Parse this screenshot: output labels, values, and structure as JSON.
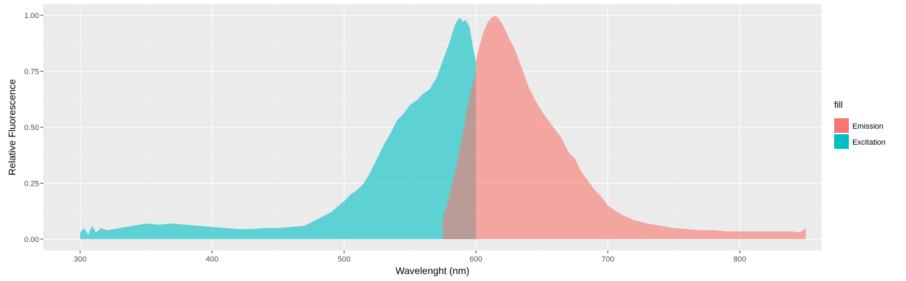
{
  "chart_data": {
    "type": "area",
    "xlabel": "Wavelenght (nm)",
    "ylabel": "Relative Fluorescence",
    "xlim": [
      272,
      862
    ],
    "ylim": [
      -0.05,
      1.05
    ],
    "x_ticks": [
      300,
      400,
      500,
      600,
      700,
      800
    ],
    "y_ticks": [
      0.0,
      0.25,
      0.5,
      0.75,
      1.0
    ],
    "x_tick_labels": [
      "300",
      "400",
      "500",
      "600",
      "700",
      "800"
    ],
    "y_tick_labels": [
      "0.00",
      "0.25",
      "0.50",
      "0.75",
      "1.00"
    ],
    "grid": true,
    "panel_background": "#ebebeb",
    "legend": {
      "title": "fill",
      "position": "right",
      "entries": [
        {
          "label": "Emission",
          "color": "#f8766d"
        },
        {
          "label": "Excitation",
          "color": "#00bfc4"
        }
      ]
    },
    "series": [
      {
        "key": "excitation",
        "color": "#00bfc4",
        "opacity": 0.6,
        "x": [
          300,
          303,
          306,
          309,
          312,
          316,
          320,
          330,
          340,
          350,
          360,
          370,
          380,
          390,
          400,
          410,
          420,
          430,
          440,
          450,
          460,
          470,
          480,
          490,
          500,
          505,
          510,
          515,
          520,
          525,
          530,
          535,
          540,
          545,
          550,
          555,
          560,
          565,
          570,
          575,
          580,
          582,
          585,
          588,
          590,
          592,
          595,
          598,
          600
        ],
        "y": [
          0.03,
          0.05,
          0.02,
          0.06,
          0.03,
          0.05,
          0.04,
          0.05,
          0.06,
          0.07,
          0.065,
          0.07,
          0.065,
          0.06,
          0.055,
          0.05,
          0.045,
          0.045,
          0.05,
          0.05,
          0.055,
          0.06,
          0.09,
          0.12,
          0.17,
          0.2,
          0.22,
          0.25,
          0.3,
          0.36,
          0.42,
          0.47,
          0.53,
          0.56,
          0.6,
          0.62,
          0.65,
          0.67,
          0.72,
          0.8,
          0.88,
          0.92,
          0.97,
          0.99,
          0.97,
          0.98,
          0.95,
          0.85,
          0.79
        ]
      },
      {
        "key": "emission",
        "color": "#f8766d",
        "opacity": 0.6,
        "x": [
          575,
          578,
          581,
          584,
          587,
          590,
          593,
          596,
          600,
          600,
          603,
          606,
          609,
          612,
          615,
          618,
          621,
          625,
          630,
          635,
          640,
          645,
          650,
          655,
          660,
          665,
          670,
          675,
          680,
          685,
          690,
          695,
          700,
          710,
          720,
          730,
          740,
          750,
          760,
          770,
          780,
          790,
          800,
          810,
          820,
          830,
          840,
          845,
          848,
          850
        ],
        "y": [
          0.1,
          0.15,
          0.22,
          0.3,
          0.38,
          0.47,
          0.57,
          0.66,
          0.75,
          0.8,
          0.87,
          0.93,
          0.97,
          0.99,
          1.0,
          0.98,
          0.95,
          0.9,
          0.84,
          0.76,
          0.68,
          0.62,
          0.57,
          0.53,
          0.49,
          0.45,
          0.39,
          0.36,
          0.3,
          0.26,
          0.22,
          0.19,
          0.15,
          0.11,
          0.085,
          0.07,
          0.06,
          0.05,
          0.045,
          0.04,
          0.04,
          0.035,
          0.035,
          0.035,
          0.035,
          0.035,
          0.035,
          0.03,
          0.04,
          0.05
        ]
      }
    ]
  }
}
